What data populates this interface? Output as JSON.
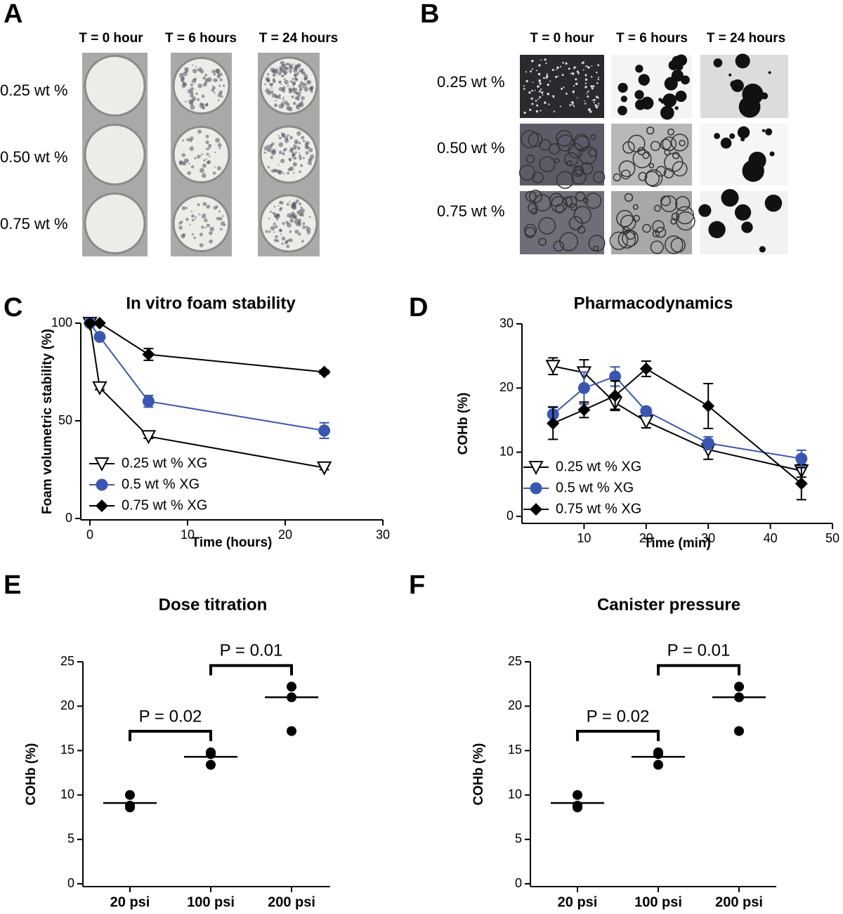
{
  "photo_panels": [
    {
      "letter": "A",
      "columns": [
        "T = 0 hour",
        "T = 6 hours",
        "T = 24 hours"
      ],
      "rows": [
        "0.25 wt %",
        "0.50 wt %",
        "0.75 wt %"
      ]
    },
    {
      "letter": "B",
      "columns": [
        "T = 0 hour",
        "T = 6 hours",
        "T = 24 hours"
      ],
      "rows": [
        "0.25 wt %",
        "0.50 wt %",
        "0.75 wt %"
      ]
    }
  ],
  "chart_data": [
    {
      "letter": "C",
      "type": "line",
      "title": "In vitro foam stability",
      "x_label": "Time (hours)",
      "y_label": "Foam volumetric stability (%)",
      "xlim": [
        0,
        30
      ],
      "xticks": [
        0,
        10,
        20,
        30
      ],
      "ylim": [
        0,
        100
      ],
      "yticks": [
        0,
        50,
        100
      ],
      "legend": "lower left",
      "series": [
        {
          "name": "0.25 wt % XG",
          "color": "#000000",
          "marker": "triangle-down",
          "x": [
            0,
            1,
            6,
            24
          ],
          "values": [
            100,
            67,
            42,
            26
          ],
          "errors": [
            0,
            1,
            1,
            1
          ]
        },
        {
          "name": "0.5 wt % XG",
          "color": "#3a56b0",
          "marker": "circle",
          "x": [
            0,
            1,
            6,
            24
          ],
          "values": [
            100,
            93,
            60,
            45
          ],
          "errors": [
            0,
            1,
            3,
            4
          ]
        },
        {
          "name": "0.75 wt % XG",
          "color": "#000000",
          "marker": "diamond",
          "x": [
            0,
            1,
            6,
            24
          ],
          "values": [
            100,
            100,
            84,
            75
          ],
          "errors": [
            0,
            0,
            3,
            1
          ]
        }
      ]
    },
    {
      "letter": "D",
      "type": "line",
      "title": "Pharmacodynamics",
      "x_label": "Time (min)",
      "y_label": "COHb (%)",
      "xlim": [
        0,
        50
      ],
      "xticks": [
        10,
        20,
        30,
        40,
        50
      ],
      "ylim": [
        0,
        30
      ],
      "yticks": [
        0,
        10,
        20,
        30
      ],
      "legend": "lower left",
      "series": [
        {
          "name": "0.25 wt % XG",
          "color": "#000000",
          "marker": "triangle-down",
          "x": [
            5,
            10,
            15,
            20,
            30,
            45
          ],
          "values": [
            23.4,
            22.4,
            17.7,
            14.8,
            10.4,
            7.1
          ],
          "errors": [
            1.3,
            2,
            1,
            1,
            1.5,
            1
          ]
        },
        {
          "name": "0.5 wt % XG",
          "color": "#3a56b0",
          "marker": "circle",
          "x": [
            5,
            10,
            15,
            20,
            30,
            45
          ],
          "values": [
            15.9,
            20,
            21.8,
            16.4,
            11.4,
            9
          ],
          "errors": [
            1.2,
            2.5,
            1.5,
            0.5,
            1,
            1.3
          ]
        },
        {
          "name": "0.75 wt % XG",
          "color": "#000000",
          "marker": "diamond",
          "x": [
            5,
            10,
            15,
            20,
            30,
            45
          ],
          "values": [
            14.5,
            16.6,
            18.8,
            23,
            17.2,
            5.1
          ],
          "errors": [
            2.5,
            1.2,
            2.3,
            1.2,
            3.5,
            2.5
          ]
        }
      ]
    },
    {
      "letter": "E",
      "type": "strip",
      "title": "Dose titration",
      "y_label": "COHb (%)",
      "color": "#000000",
      "categories": [
        "20 psi",
        "100 psi",
        "200 psi"
      ],
      "ylim": [
        0,
        25
      ],
      "yticks": [
        0,
        5,
        10,
        15,
        20,
        25
      ],
      "points": [
        [
          10.0,
          8.8,
          8.6
        ],
        [
          14.8,
          13.4,
          14.6
        ],
        [
          22.2,
          21.0,
          17.2
        ]
      ],
      "center_values": [
        9.1,
        14.3,
        21.0
      ],
      "comparisons": [
        {
          "from": 0,
          "to": 1,
          "label": "P = 0.02"
        },
        {
          "from": 1,
          "to": 2,
          "label": "P = 0.01"
        }
      ]
    },
    {
      "letter": "F",
      "type": "strip",
      "title": "Canister pressure",
      "y_label": "COHb (%)",
      "color": "#000000",
      "categories": [
        "20 psi",
        "100 psi",
        "200 psi"
      ],
      "ylim": [
        0,
        25
      ],
      "yticks": [
        0,
        5,
        10,
        15,
        20,
        25
      ],
      "points": [
        [
          10.0,
          8.8,
          8.6
        ],
        [
          14.8,
          13.4,
          14.6
        ],
        [
          22.2,
          21.0,
          17.2
        ]
      ],
      "center_values": [
        9.1,
        14.3,
        21.0
      ],
      "comparisons": [
        {
          "from": 0,
          "to": 1,
          "label": "P = 0.02"
        },
        {
          "from": 1,
          "to": 2,
          "label": "P = 0.01"
        }
      ]
    }
  ]
}
